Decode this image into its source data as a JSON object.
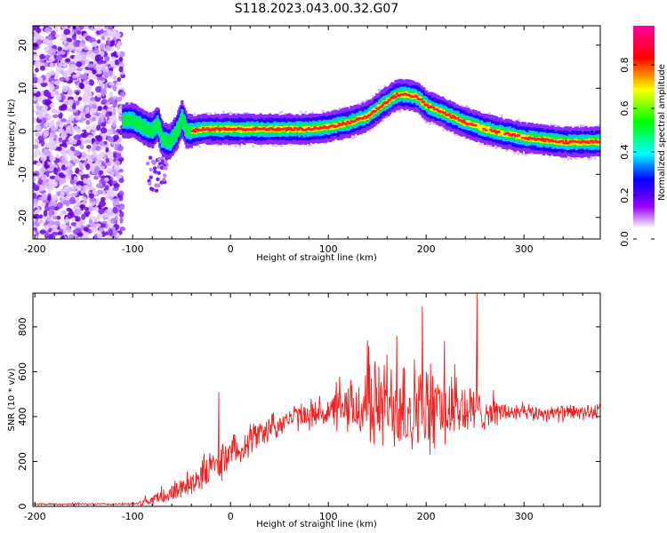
{
  "title": "S118.2023.043.00.32.G07",
  "chart_data": [
    {
      "type": "heatmap",
      "title": "S118.2023.043.00.32.G07",
      "xlabel": "Height of straight line (km)",
      "ylabel": "Frequency (Hz)",
      "xlim": [
        -202,
        378
      ],
      "ylim": [
        -25,
        24.5
      ],
      "xticks": [
        -200,
        -100,
        0,
        100,
        200,
        300
      ],
      "yticks": [
        -20,
        -10,
        0,
        10,
        20
      ],
      "ridge": {
        "x": [
          -110,
          -100,
          -90,
          -80,
          -75,
          -70,
          -62,
          -55,
          -50,
          -45,
          -40,
          -30,
          -10,
          0,
          20,
          50,
          80,
          100,
          120,
          140,
          160,
          170,
          180,
          190,
          200,
          210,
          220,
          240,
          260,
          280,
          300,
          320,
          340,
          360,
          372
        ],
        "freq": [
          2.5,
          2.5,
          1.0,
          0.0,
          2.0,
          -2.0,
          -2.5,
          0.0,
          3.0,
          0.0,
          0.0,
          0.5,
          0.5,
          0.5,
          0.5,
          0.5,
          0.5,
          1.0,
          2.0,
          3.5,
          7.0,
          8.5,
          8.5,
          8.0,
          6.0,
          5.0,
          4.0,
          2.0,
          0.5,
          -0.5,
          -1.5,
          -2.0,
          -2.5,
          -2.5,
          -2.5
        ]
      },
      "noise_region_x": [
        -202,
        -110
      ],
      "colorbar": {
        "label": "Normalized spectral amplitude",
        "ticks": [
          "0.0",
          "0.2",
          "0.4",
          "0.6",
          "0.8"
        ],
        "range": [
          0,
          0.98
        ],
        "colors": [
          "#ffffff",
          "#9900ff",
          "#0000ff",
          "#00ffff",
          "#00ff00",
          "#ffff00",
          "#ff0000",
          "#ff00a0"
        ]
      }
    },
    {
      "type": "line",
      "xlabel": "Height of straight line (km)",
      "ylabel": "SNR (10 * v/v)",
      "xlim": [
        -202,
        378
      ],
      "ylim": [
        0,
        950
      ],
      "xticks": [
        -200,
        -100,
        0,
        100,
        200,
        300
      ],
      "yticks": [
        0,
        200,
        400,
        600,
        800
      ],
      "color": "#ee2222",
      "envelope": {
        "x": [
          -202,
          -100,
          -80,
          -60,
          -40,
          -20,
          0,
          20,
          40,
          60,
          80,
          100,
          120,
          140,
          160,
          180,
          200,
          220,
          240,
          260,
          280,
          300,
          320,
          340,
          360,
          378
        ],
        "mean": [
          10,
          10,
          25,
          60,
          110,
          170,
          230,
          300,
          350,
          390,
          410,
          420,
          430,
          450,
          460,
          450,
          430,
          440,
          430,
          420,
          420,
          415,
          415,
          415,
          420,
          420
        ],
        "spread": [
          5,
          5,
          30,
          50,
          70,
          90,
          90,
          80,
          70,
          60,
          70,
          80,
          120,
          200,
          240,
          250,
          220,
          200,
          160,
          80,
          50,
          40,
          40,
          40,
          40,
          40
        ]
      },
      "peaks": [
        {
          "x": 252,
          "y": 950
        },
        {
          "x": 196,
          "y": 890
        },
        {
          "x": 170,
          "y": 760
        },
        {
          "x": 140,
          "y": 740
        },
        {
          "x": -12,
          "y": 510
        }
      ]
    }
  ]
}
